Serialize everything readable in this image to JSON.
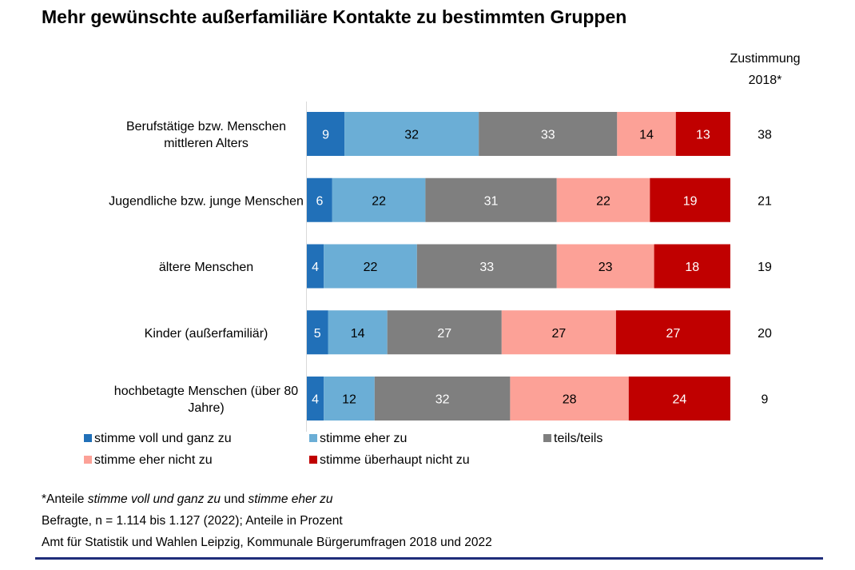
{
  "chart_data": {
    "type": "bar",
    "orientation": "horizontal",
    "stacked": true,
    "title": "Mehr gewünschte außerfamiliäre Kontakte zu bestimmten Gruppen",
    "xlabel": "",
    "ylabel": "",
    "xlim": [
      0,
      100
    ],
    "grid": false,
    "legend_position": "bottom",
    "categories": [
      "Berufstätige bzw. Menschen mittleren Alters",
      "Jugendliche bzw. junge Menschen",
      "ältere Menschen",
      "Kinder (außerfamiliär)",
      "hochbetagte Menschen (über 80 Jahre)"
    ],
    "category_lines": [
      [
        "Berufstätige bzw. Menschen",
        "mittleren Alters"
      ],
      [
        "Jugendliche bzw. junge Menschen"
      ],
      [
        "ältere Menschen"
      ],
      [
        "Kinder (außerfamiliär)"
      ],
      [
        "hochbetagte Menschen (über 80",
        "Jahre)"
      ]
    ],
    "series": [
      {
        "name": "stimme voll und ganz zu",
        "color": "#2170b8",
        "label_color": "#ffffff",
        "values": [
          9,
          6,
          4,
          5,
          4
        ]
      },
      {
        "name": "stimme eher zu",
        "color": "#6baed6",
        "label_color": "#000000",
        "values": [
          32,
          22,
          22,
          14,
          12
        ]
      },
      {
        "name": "teils/teils",
        "color": "#7f7f7f",
        "label_color": "#ffffff",
        "values": [
          33,
          31,
          33,
          27,
          32
        ]
      },
      {
        "name": "stimme eher nicht zu",
        "color": "#fca197",
        "label_color": "#000000",
        "values": [
          14,
          22,
          23,
          27,
          28
        ]
      },
      {
        "name": "stimme überhaupt nicht zu",
        "color": "#c00000",
        "label_color": "#ffffff",
        "values": [
          13,
          19,
          18,
          27,
          24
        ]
      }
    ],
    "side_column": {
      "header": [
        "Zustimmung",
        "2018*"
      ],
      "values": [
        38,
        21,
        19,
        20,
        9
      ]
    }
  },
  "footnotes": {
    "line1_prefix": "*Anteile ",
    "line1_italic1": "stimme voll und ganz zu",
    "line1_mid": " und ",
    "line1_italic2": "stimme eher zu",
    "line2": "Befragte, n = 1.114 bis 1.127 (2022); Anteile in Prozent",
    "line3": "Amt für Statistik und Wahlen Leipzig, Kommunale Bürgerumfragen 2018 und 2022"
  }
}
